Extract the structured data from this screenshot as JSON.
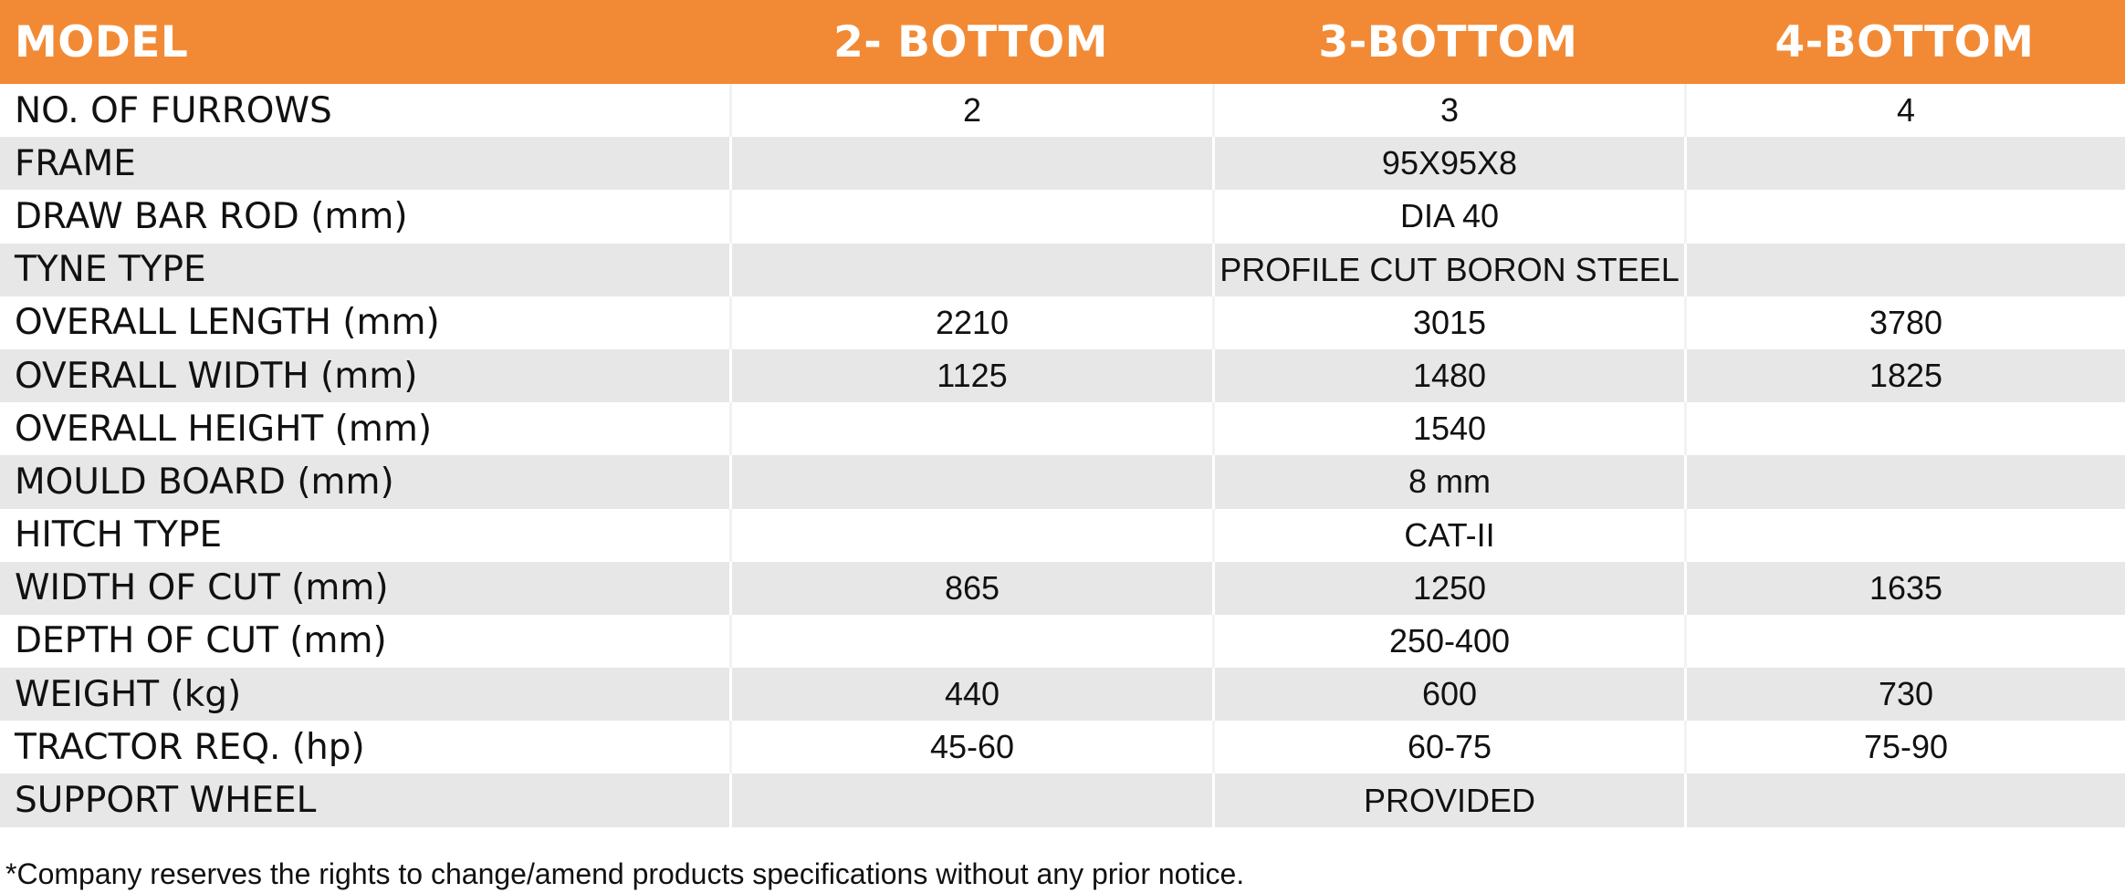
{
  "header": {
    "model_label": "MODEL",
    "col1": "2- BOTTOM",
    "col2": "3-BOTTOM",
    "col3": "4-BOTTOM"
  },
  "rows": [
    {
      "label": "NO. OF FURROWS",
      "v1": "2",
      "v2": "3",
      "v3": "4"
    },
    {
      "label": "FRAME",
      "v1": "",
      "v2": "95X95X8",
      "v3": ""
    },
    {
      "label": "DRAW BAR ROD (mm)",
      "v1": "",
      "v2": "DIA 40",
      "v3": ""
    },
    {
      "label": "TYNE TYPE",
      "v1": "",
      "v2": "PROFILE CUT BORON STEEL",
      "v3": ""
    },
    {
      "label": "OVERALL LENGTH (mm)",
      "v1": "2210",
      "v2": "3015",
      "v3": "3780"
    },
    {
      "label": "OVERALL WIDTH (mm)",
      "v1": "1125",
      "v2": "1480",
      "v3": "1825"
    },
    {
      "label": "OVERALL HEIGHT (mm)",
      "v1": "",
      "v2": "1540",
      "v3": ""
    },
    {
      "label": "MOULD BOARD (mm)",
      "v1": "",
      "v2": "8 mm",
      "v3": ""
    },
    {
      "label": "HITCH TYPE",
      "v1": "",
      "v2": "CAT-II",
      "v3": ""
    },
    {
      "label": "WIDTH OF CUT (mm)",
      "v1": "865",
      "v2": "1250",
      "v3": "1635"
    },
    {
      "label": "DEPTH OF CUT (mm)",
      "v1": "",
      "v2": "250-400",
      "v3": ""
    },
    {
      "label": "WEIGHT (kg)",
      "v1": "440",
      "v2": "600",
      "v3": "730"
    },
    {
      "label": "TRACTOR REQ. (hp)",
      "v1": "45-60",
      "v2": "60-75",
      "v3": "75-90"
    },
    {
      "label": "SUPPORT WHEEL",
      "v1": "",
      "v2": "PROVIDED",
      "v3": ""
    }
  ],
  "footnote": "*Company reserves the rights to change/amend products specifications without any prior notice.",
  "colors": {
    "header_bg": "#f28a35",
    "shaded_row": "#e6e7e6"
  }
}
